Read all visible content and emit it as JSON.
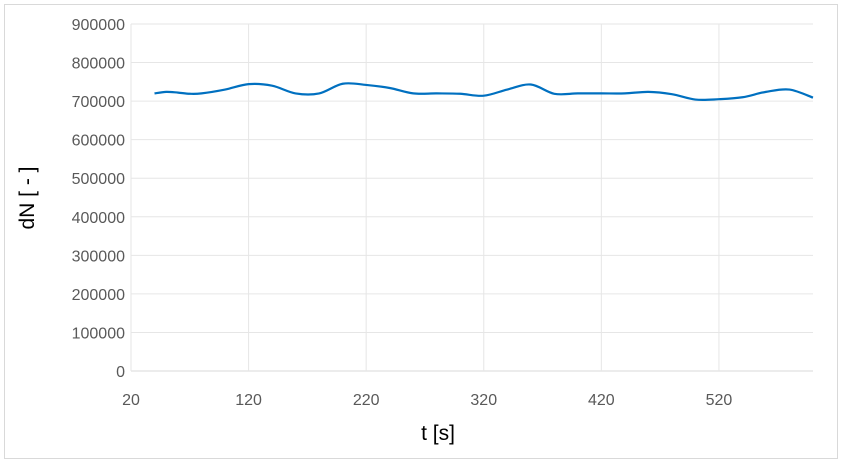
{
  "chart_data": {
    "type": "line",
    "title": "",
    "xlabel": "t [s]",
    "ylabel": "dN [ - ]",
    "xlim": [
      20,
      600
    ],
    "ylim": [
      0,
      900000
    ],
    "xticks": [
      20,
      120,
      220,
      320,
      420,
      520
    ],
    "yticks": [
      0,
      100000,
      200000,
      300000,
      400000,
      500000,
      600000,
      700000,
      800000,
      900000
    ],
    "grid": true,
    "legend": "none",
    "series": [
      {
        "color": "#0070c0",
        "x": [
          40,
          50,
          60,
          70,
          80,
          100,
          120,
          140,
          160,
          180,
          200,
          220,
          240,
          260,
          280,
          300,
          320,
          340,
          360,
          380,
          400,
          420,
          440,
          460,
          480,
          500,
          520,
          540,
          560,
          580,
          600
        ],
        "y": [
          720000,
          724000,
          722000,
          719000,
          720000,
          730000,
          744000,
          740000,
          720000,
          720000,
          745000,
          742000,
          734000,
          720000,
          720000,
          719000,
          714000,
          730000,
          743000,
          719000,
          720000,
          720000,
          720000,
          724000,
          718000,
          704000,
          705000,
          710000,
          724000,
          730000,
          709000
        ]
      }
    ]
  }
}
